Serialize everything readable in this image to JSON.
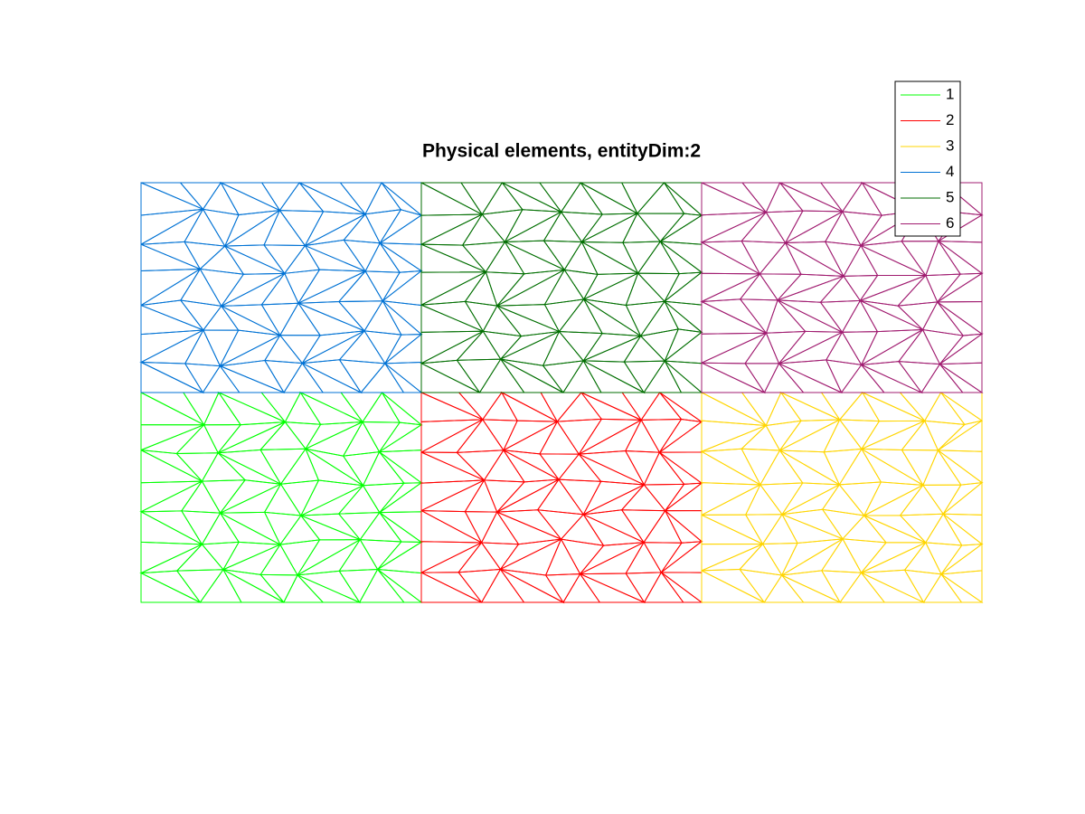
{
  "chart_data": {
    "type": "mesh",
    "title": "Physical elements, entityDim:2",
    "series": [
      {
        "name": "1",
        "color": "#00ff00"
      },
      {
        "name": "2",
        "color": "#ff0000"
      },
      {
        "name": "3",
        "color": "#ffd500"
      },
      {
        "name": "4",
        "color": "#0072d4"
      },
      {
        "name": "5",
        "color": "#006e00"
      },
      {
        "name": "6",
        "color": "#a01c70"
      }
    ]
  }
}
